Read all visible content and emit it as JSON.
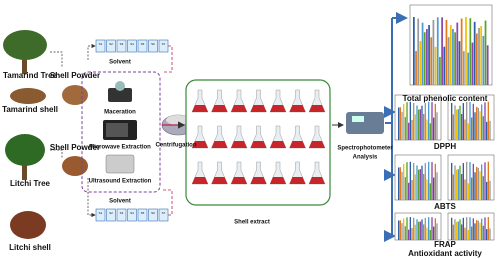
{
  "sources": [
    {
      "tree": "Tamarind Tree",
      "powder": "Shell Powder",
      "shell": "Tamarind shell"
    },
    {
      "tree": "Litchi Tree",
      "powder": "Shell Powder",
      "shell": "Litchi shell"
    }
  ],
  "solvents": [
    {
      "label": "Solvent",
      "tubes": [
        "S1",
        "S2",
        "S3",
        "S4",
        "S5",
        "S6",
        "S7"
      ]
    },
    {
      "label": "Solvent",
      "tubes": [
        "S1",
        "S2",
        "S3",
        "S4",
        "S5",
        "S6",
        "S7"
      ]
    }
  ],
  "methods": [
    "Maceration",
    "Microwave Extraction",
    "Ultrasound Extraction"
  ],
  "centrifugation": "Centrifugation",
  "extract": "Shell extract",
  "analysis": [
    "Spectrophotometer",
    "Analysis"
  ],
  "results": {
    "tpc": "Total phenolic content",
    "assays": [
      "DPPH",
      "ABTS",
      "FRAP"
    ],
    "antioxidant": "Antioxidant activity"
  }
}
